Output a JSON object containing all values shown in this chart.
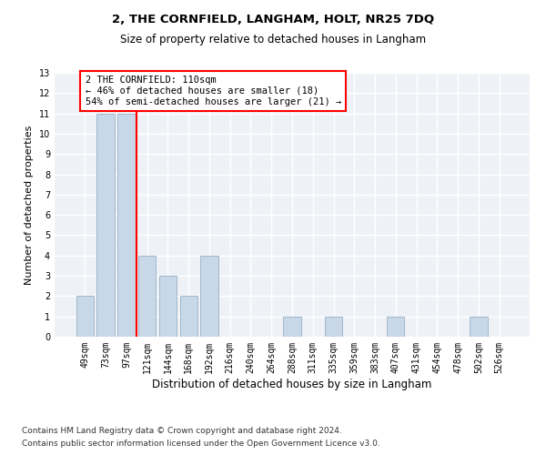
{
  "title": "2, THE CORNFIELD, LANGHAM, HOLT, NR25 7DQ",
  "subtitle": "Size of property relative to detached houses in Langham",
  "xlabel": "Distribution of detached houses by size in Langham",
  "ylabel": "Number of detached properties",
  "footnote1": "Contains HM Land Registry data © Crown copyright and database right 2024.",
  "footnote2": "Contains public sector information licensed under the Open Government Licence v3.0.",
  "categories": [
    "49sqm",
    "73sqm",
    "97sqm",
    "121sqm",
    "144sqm",
    "168sqm",
    "192sqm",
    "216sqm",
    "240sqm",
    "264sqm",
    "288sqm",
    "311sqm",
    "335sqm",
    "359sqm",
    "383sqm",
    "407sqm",
    "431sqm",
    "454sqm",
    "478sqm",
    "502sqm",
    "526sqm"
  ],
  "values": [
    2,
    11,
    11,
    4,
    3,
    2,
    4,
    0,
    0,
    0,
    1,
    0,
    1,
    0,
    0,
    1,
    0,
    0,
    0,
    1,
    0
  ],
  "bar_color": "#c8d8e8",
  "bar_edge_color": "#a0b8cc",
  "red_line_x": 2.5,
  "annotation_text": "2 THE CORNFIELD: 110sqm\n← 46% of detached houses are smaller (18)\n54% of semi-detached houses are larger (21) →",
  "annotation_box_color": "white",
  "annotation_box_edge": "red",
  "ylim": [
    0,
    13
  ],
  "yticks": [
    0,
    1,
    2,
    3,
    4,
    5,
    6,
    7,
    8,
    9,
    10,
    11,
    12,
    13
  ],
  "background_color": "#eef2f7",
  "grid_color": "white",
  "title_fontsize": 9.5,
  "subtitle_fontsize": 8.5,
  "ylabel_fontsize": 8,
  "xlabel_fontsize": 8.5,
  "tick_fontsize": 7,
  "footnote_fontsize": 6.5
}
